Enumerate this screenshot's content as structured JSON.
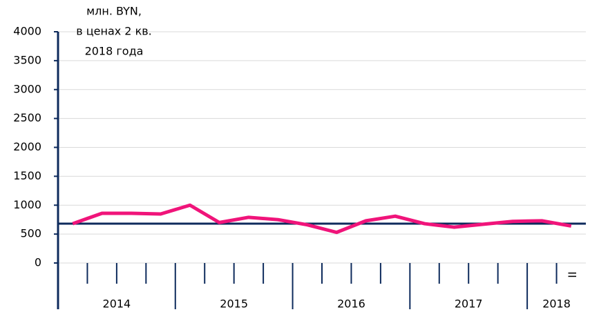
{
  "chart_data": {
    "type": "line",
    "y_label_lines": [
      "млн. BYN,",
      "в ценах 2 кв.",
      "2018 года"
    ],
    "categories": [
      null,
      null,
      null,
      null,
      null,
      null,
      null,
      null,
      null,
      null,
      null,
      null,
      null,
      null,
      null,
      null,
      null,
      "II"
    ],
    "x_groups": [
      {
        "label": "2014",
        "count": 4
      },
      {
        "label": "2015",
        "count": 4
      },
      {
        "label": "2016",
        "count": 4
      },
      {
        "label": "2017",
        "count": 4
      },
      {
        "label": "2018",
        "count": 2
      }
    ],
    "series": [
      {
        "color": "#f0147a",
        "values": [
          680,
          860,
          860,
          848,
          1000,
          700,
          790,
          750,
          660,
          530,
          730,
          810,
          680,
          620,
          670,
          720,
          730,
          640
        ]
      }
    ],
    "reference_line": {
      "value": 680,
      "color": "#0d2a5c"
    },
    "ylim": [
      0,
      4000
    ],
    "yticks": [
      0,
      500,
      1000,
      1500,
      2000,
      2500,
      3000,
      3500,
      4000
    ],
    "grid": true
  }
}
